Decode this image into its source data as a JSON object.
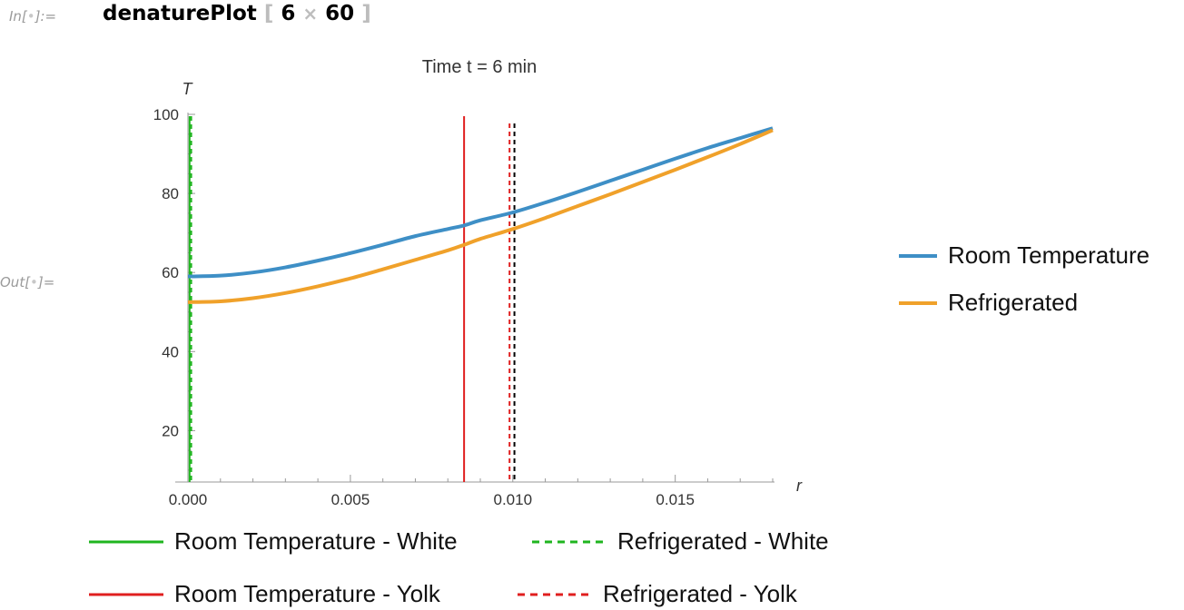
{
  "notebook": {
    "in_prefix": "In[",
    "in_suffix": "]:=",
    "out_prefix": "Out[",
    "out_suffix": "]=",
    "cell_dot": "•",
    "function_name": "denaturePlot",
    "open_bracket": "[",
    "arg1": "6",
    "times_symbol": "×",
    "arg2": "60",
    "close_bracket": "]"
  },
  "chart_data": {
    "type": "line",
    "title": "Time t = 6 min",
    "xlabel": "r",
    "ylabel": "T",
    "xlim": [
      0,
      0.018
    ],
    "ylim": [
      7,
      100
    ],
    "x_ticks": [
      0.0,
      0.005,
      0.01,
      0.015
    ],
    "x_tick_labels": [
      "0.000",
      "0.005",
      "0.010",
      "0.015"
    ],
    "y_ticks": [
      20,
      40,
      60,
      80,
      100
    ],
    "y_tick_labels": [
      "20",
      "40",
      "60",
      "80",
      "100"
    ],
    "grid": false,
    "colors": {
      "blue": "#3e8fc6",
      "orange": "#f0a12a",
      "green": "#1fb51f",
      "red": "#e01f1f",
      "black": "#000000"
    },
    "series": [
      {
        "name": "Room Temperature",
        "style": "solid",
        "color": "#3e8fc6",
        "x": [
          0,
          0.001,
          0.002,
          0.003,
          0.004,
          0.005,
          0.006,
          0.007,
          0.008,
          0.0085,
          0.009,
          0.01,
          0.011,
          0.012,
          0.013,
          0.014,
          0.015,
          0.016,
          0.017,
          0.018
        ],
        "y": [
          59.0,
          59.2,
          60.0,
          61.3,
          63.0,
          64.9,
          67.0,
          69.2,
          71.0,
          71.9,
          73.2,
          75.2,
          77.7,
          80.4,
          83.2,
          86.0,
          88.8,
          91.5,
          94.0,
          96.5
        ]
      },
      {
        "name": "Refrigerated",
        "style": "solid",
        "color": "#f0a12a",
        "x": [
          0,
          0.001,
          0.002,
          0.003,
          0.004,
          0.005,
          0.006,
          0.007,
          0.008,
          0.0085,
          0.009,
          0.01,
          0.011,
          0.012,
          0.013,
          0.014,
          0.015,
          0.016,
          0.017,
          0.018
        ],
        "y": [
          52.5,
          52.7,
          53.5,
          54.8,
          56.5,
          58.5,
          60.8,
          63.2,
          65.6,
          67.0,
          68.5,
          71.0,
          73.8,
          76.8,
          79.8,
          82.9,
          86.0,
          89.2,
          92.5,
          96.0
        ]
      }
    ],
    "vertical_lines": [
      {
        "name": "Room Temperature - White",
        "x": 5e-05,
        "color": "#1fb51f",
        "style": "solid"
      },
      {
        "name": "Refrigerated - White",
        "x": 0.0001,
        "color": "#1fb51f",
        "style": "dashed"
      },
      {
        "name": "Room Temperature - Yolk",
        "x": 0.0085,
        "color": "#e01f1f",
        "style": "solid"
      },
      {
        "name": "Refrigerated - Yolk",
        "x": 0.0099,
        "color": "#e01f1f",
        "style": "dashed"
      },
      {
        "name": "",
        "x": 0.01005,
        "color": "#000000",
        "style": "dashed"
      }
    ],
    "legend": {
      "right": [
        "Room Temperature",
        "Refrigerated"
      ],
      "bottom": [
        "Room Temperature - White",
        "Refrigerated - White",
        "Room Temperature - Yolk",
        "Refrigerated - Yolk"
      ],
      "placement": "right and bottom"
    }
  }
}
